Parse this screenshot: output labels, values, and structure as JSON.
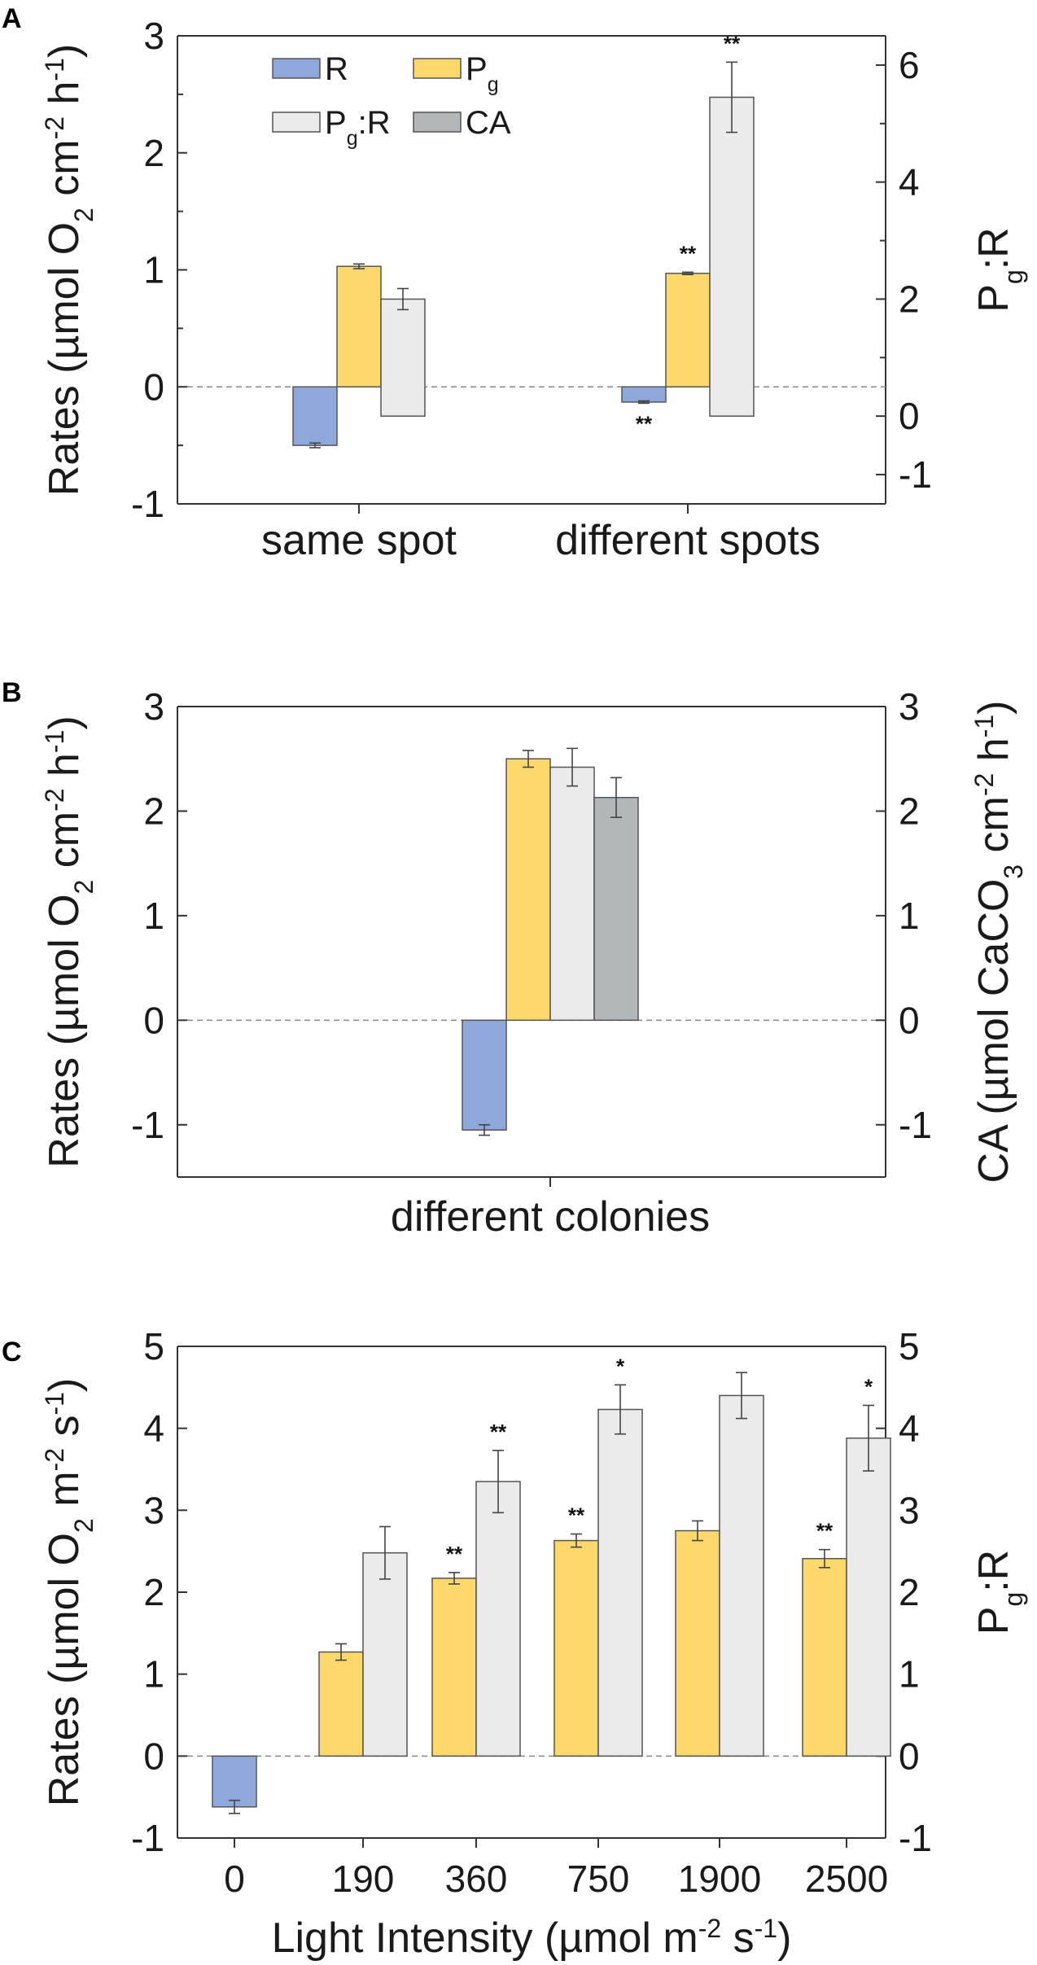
{
  "colors": {
    "R": "#8ea8dc",
    "Pg": "#fdd86a",
    "PgR": "#ebebeb",
    "CA": "#b2b8ba",
    "outline": "#555555",
    "axis": "#333333",
    "error": "#444444",
    "zero_line": "#888888"
  },
  "legend": {
    "items": [
      {
        "key": "R",
        "label": "R"
      },
      {
        "key": "Pg",
        "label": "P",
        "sub": "g"
      },
      {
        "key": "PgR",
        "label": "P",
        "sub": "g",
        "suffix": ":R"
      },
      {
        "key": "CA",
        "label": "CA"
      }
    ]
  },
  "chart_data": [
    {
      "panel": "A",
      "type": "bar",
      "categories": [
        "same spot",
        "different spots"
      ],
      "ylabel": "Rates (µmol O2 cm-2 h-1)",
      "ylabel_parts": [
        "Rates (µmol O",
        "2",
        " cm",
        "-2",
        " h",
        "-1",
        ")"
      ],
      "y2label": "Pg:R",
      "y2label_parts": [
        "P",
        "g",
        ":R"
      ],
      "ylim": [
        -1,
        3
      ],
      "yticks": [
        "-1",
        "0",
        "1",
        "2",
        "3"
      ],
      "y2lim": [
        -1.5,
        6.5
      ],
      "y2ticks": [
        "-1",
        "0",
        "2",
        "4",
        "6"
      ],
      "y2_values": [
        -1,
        0,
        2,
        4,
        6
      ],
      "series": [
        {
          "name": "R",
          "key": "R",
          "axis": "left",
          "values": [
            -0.5,
            -0.13
          ],
          "errors": [
            0.02,
            0.01
          ],
          "sig": [
            "",
            "**"
          ]
        },
        {
          "name": "Pg",
          "key": "Pg",
          "axis": "left",
          "values": [
            1.03,
            0.97
          ],
          "errors": [
            0.02,
            0.01
          ],
          "sig": [
            "",
            "**"
          ]
        },
        {
          "name": "Pg:R",
          "key": "PgR",
          "axis": "right",
          "values": [
            2.0,
            5.45
          ],
          "errors": [
            0.18,
            0.6
          ],
          "sig": [
            "",
            "**"
          ]
        }
      ],
      "grid": false,
      "legend": "top-left"
    },
    {
      "panel": "B",
      "type": "bar",
      "categories": [
        "different colonies"
      ],
      "ylabel": "Rates (µmol O2 cm-2 h-1)",
      "ylabel_parts": [
        "Rates (µmol O",
        "2",
        " cm",
        "-2",
        " h",
        "-1",
        ")"
      ],
      "y2label": "CA (µmol CaCO3 cm-2 h-1)",
      "y2label_parts": [
        "CA (µmol CaCO",
        "3",
        " cm",
        "-2",
        " h",
        "-1",
        ")"
      ],
      "ylim": [
        -1.5,
        3
      ],
      "yticks": [
        "-1",
        "0",
        "1",
        "2",
        "3"
      ],
      "y2lim": [
        -1.5,
        3
      ],
      "y2ticks": [
        "-1",
        "0",
        "1",
        "2",
        "3"
      ],
      "y2_values": [
        -1,
        0,
        1,
        2,
        3
      ],
      "series": [
        {
          "name": "R",
          "key": "R",
          "axis": "left",
          "values": [
            -1.05
          ],
          "errors": [
            0.05
          ],
          "sig": [
            ""
          ]
        },
        {
          "name": "Pg",
          "key": "Pg",
          "axis": "left",
          "values": [
            2.5
          ],
          "errors": [
            0.08
          ],
          "sig": [
            ""
          ]
        },
        {
          "name": "Pg:R",
          "key": "PgR",
          "axis": "left",
          "values": [
            2.42
          ],
          "errors": [
            0.18
          ],
          "sig": [
            ""
          ]
        },
        {
          "name": "CA",
          "key": "CA",
          "axis": "right",
          "values": [
            2.13
          ],
          "errors": [
            0.19
          ],
          "sig": [
            ""
          ]
        }
      ],
      "grid": false
    },
    {
      "panel": "C",
      "type": "bar",
      "categories": [
        "0",
        "190",
        "360",
        "750",
        "1900",
        "2500"
      ],
      "xlabel": "Light Intensity (µmol m-2 s-1)",
      "xlabel_parts": [
        "Light Intensity (µmol m",
        "-2",
        " s",
        "-1",
        ")"
      ],
      "ylabel": "Rates (µmol O2 m-2 s-1)",
      "ylabel_parts": [
        "Rates (µmol O",
        "2",
        " m",
        "-2",
        " s",
        "-1",
        ")"
      ],
      "y2label": "Pg:R",
      "y2label_parts": [
        "P",
        "g",
        ":R"
      ],
      "ylim": [
        -1,
        5
      ],
      "yticks": [
        "-1",
        "0",
        "1",
        "2",
        "3",
        "4",
        "5"
      ],
      "y2lim": [
        -1,
        5
      ],
      "y2ticks": [
        "-1",
        "0",
        "1",
        "2",
        "3",
        "4",
        "5"
      ],
      "y2_values": [
        -1,
        0,
        1,
        2,
        3,
        4,
        5
      ],
      "series": [
        {
          "name": "R",
          "key": "R",
          "axis": "left",
          "values": [
            -0.62,
            null,
            null,
            null,
            null,
            null
          ],
          "errors": [
            0.08,
            null,
            null,
            null,
            null,
            null
          ],
          "sig": [
            "",
            "",
            "",
            "",
            "",
            ""
          ]
        },
        {
          "name": "Pg",
          "key": "Pg",
          "axis": "left",
          "values": [
            null,
            1.27,
            2.17,
            2.63,
            2.75,
            2.41
          ],
          "errors": [
            null,
            0.1,
            0.07,
            0.08,
            0.12,
            0.11
          ],
          "sig": [
            "",
            "",
            "**",
            "**",
            "",
            "**"
          ]
        },
        {
          "name": "Pg:R",
          "key": "PgR",
          "axis": "right",
          "values": [
            null,
            2.48,
            3.35,
            4.23,
            4.4,
            3.88
          ],
          "errors": [
            null,
            0.32,
            0.38,
            0.3,
            0.28,
            0.4
          ],
          "sig": [
            "",
            "",
            "**",
            "*",
            "",
            "*"
          ]
        }
      ],
      "grid": false
    }
  ]
}
